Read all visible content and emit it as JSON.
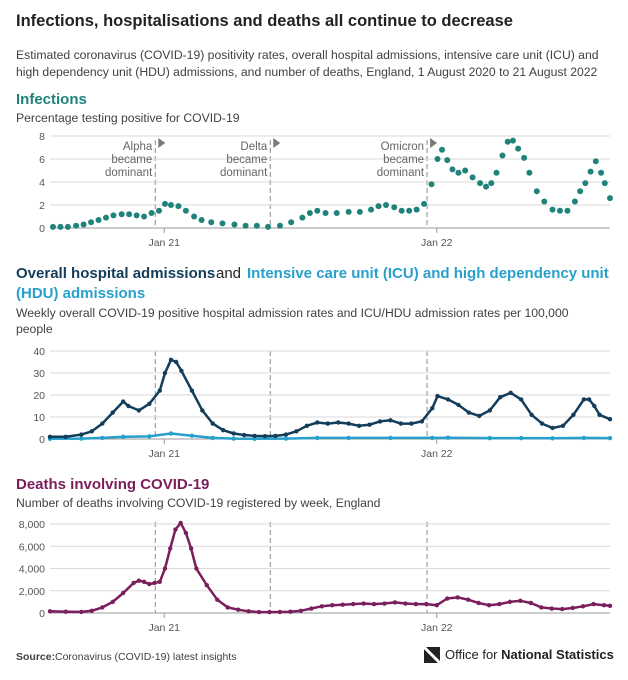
{
  "title": "Infections, hospitalisations and deaths all continue to decrease",
  "subtitle_line1": "Estimated coronavirus (COVID-19) positivity rates, overall hospital admissions, intensive care unit (ICU) and",
  "subtitle_line2": "high dependency unit (HDU) admissions, and number of deaths, England, 1 August 2020 to 21 August 2022",
  "sections": {
    "infections": {
      "title": "Infections",
      "subtitle": "Percentage testing positive for COVID-19"
    },
    "hospital": {
      "title_part1": "Overall hospital admissions",
      "title_joiner": "and",
      "title_part2_line1": "Intensive care unit (ICU) and high dependency unit",
      "title_part2_line2": "(HDU) admissions",
      "subtitle_line1": "Weekly overall COVID-19 positive hospital admission rates and ICU/HDU admission rates per 100,000",
      "subtitle_line2": "people"
    },
    "deaths": {
      "title": "Deaths involving COVID-19",
      "subtitle": "Number of deaths involving COVID-19 registered by week, England"
    }
  },
  "annotations": [
    {
      "line1": "Alpha",
      "line2": "became",
      "line3": "dominant",
      "date": "2020-12-20"
    },
    {
      "line1": "Delta",
      "line2": "became",
      "line3": "dominant",
      "date": "2021-05-23"
    },
    {
      "line1": "Omicron",
      "line2": "became",
      "line3": "dominant",
      "date": "2021-12-19"
    }
  ],
  "source": {
    "label": "Source:",
    "text": "Coronavirus (COVID-19) latest insights"
  },
  "publisher": {
    "prefix": "Office for",
    "bold": "National Statistics"
  },
  "colors": {
    "infections": "#20837b",
    "hospital": "#133d5a",
    "icu": "#27a0cc",
    "deaths": "#7a1e5c",
    "grid": "#d9d9d9"
  },
  "chart_data": [
    {
      "id": "infections",
      "type": "scatter",
      "series_name": "Percentage testing positive for COVID-19",
      "x_range": [
        "2020-08-01",
        "2022-08-21"
      ],
      "x_ticks": [
        {
          "date": "2021-01-01",
          "label": "Jan 21"
        },
        {
          "date": "2022-01-01",
          "label": "Jan 22"
        }
      ],
      "ylim": [
        0,
        8
      ],
      "y_ticks": [
        0,
        2,
        4,
        6,
        8
      ],
      "y_tick_labels": [
        "0",
        "2",
        "4",
        "6",
        "8"
      ],
      "points": [
        [
          "2020-08-05",
          0.1
        ],
        [
          "2020-08-15",
          0.1
        ],
        [
          "2020-08-25",
          0.1
        ],
        [
          "2020-09-05",
          0.2
        ],
        [
          "2020-09-15",
          0.3
        ],
        [
          "2020-09-25",
          0.5
        ],
        [
          "2020-10-05",
          0.7
        ],
        [
          "2020-10-15",
          0.9
        ],
        [
          "2020-10-25",
          1.1
        ],
        [
          "2020-11-05",
          1.2
        ],
        [
          "2020-11-15",
          1.2
        ],
        [
          "2020-11-25",
          1.1
        ],
        [
          "2020-12-05",
          1.0
        ],
        [
          "2020-12-15",
          1.3
        ],
        [
          "2020-12-25",
          1.5
        ],
        [
          "2021-01-02",
          2.1
        ],
        [
          "2021-01-10",
          2.0
        ],
        [
          "2021-01-20",
          1.9
        ],
        [
          "2021-01-30",
          1.5
        ],
        [
          "2021-02-10",
          1.0
        ],
        [
          "2021-02-20",
          0.7
        ],
        [
          "2021-03-05",
          0.5
        ],
        [
          "2021-03-20",
          0.4
        ],
        [
          "2021-04-05",
          0.3
        ],
        [
          "2021-04-20",
          0.2
        ],
        [
          "2021-05-05",
          0.2
        ],
        [
          "2021-05-20",
          0.1
        ],
        [
          "2021-06-05",
          0.2
        ],
        [
          "2021-06-20",
          0.5
        ],
        [
          "2021-07-05",
          0.9
        ],
        [
          "2021-07-15",
          1.3
        ],
        [
          "2021-07-25",
          1.5
        ],
        [
          "2021-08-05",
          1.3
        ],
        [
          "2021-08-20",
          1.3
        ],
        [
          "2021-09-05",
          1.4
        ],
        [
          "2021-09-20",
          1.4
        ],
        [
          "2021-10-05",
          1.6
        ],
        [
          "2021-10-15",
          1.9
        ],
        [
          "2021-10-25",
          2.0
        ],
        [
          "2021-11-05",
          1.8
        ],
        [
          "2021-11-15",
          1.5
        ],
        [
          "2021-11-25",
          1.5
        ],
        [
          "2021-12-05",
          1.6
        ],
        [
          "2021-12-15",
          2.1
        ],
        [
          "2021-12-25",
          3.8
        ],
        [
          "2022-01-02",
          6.0
        ],
        [
          "2022-01-08",
          6.8
        ],
        [
          "2022-01-15",
          5.9
        ],
        [
          "2022-01-22",
          5.1
        ],
        [
          "2022-01-30",
          4.8
        ],
        [
          "2022-02-08",
          5.0
        ],
        [
          "2022-02-18",
          4.4
        ],
        [
          "2022-02-28",
          3.9
        ],
        [
          "2022-03-08",
          3.6
        ],
        [
          "2022-03-15",
          3.9
        ],
        [
          "2022-03-22",
          4.8
        ],
        [
          "2022-03-30",
          6.3
        ],
        [
          "2022-04-06",
          7.5
        ],
        [
          "2022-04-13",
          7.6
        ],
        [
          "2022-04-20",
          6.9
        ],
        [
          "2022-04-28",
          6.1
        ],
        [
          "2022-05-05",
          4.8
        ],
        [
          "2022-05-15",
          3.2
        ],
        [
          "2022-05-25",
          2.3
        ],
        [
          "2022-06-05",
          1.6
        ],
        [
          "2022-06-15",
          1.5
        ],
        [
          "2022-06-25",
          1.5
        ],
        [
          "2022-07-05",
          2.3
        ],
        [
          "2022-07-12",
          3.2
        ],
        [
          "2022-07-19",
          3.9
        ],
        [
          "2022-07-26",
          4.9
        ],
        [
          "2022-08-02",
          5.8
        ],
        [
          "2022-08-09",
          4.8
        ],
        [
          "2022-08-14",
          3.9
        ],
        [
          "2022-08-21",
          2.6
        ]
      ]
    },
    {
      "id": "hospital",
      "type": "line",
      "x_range": [
        "2020-08-01",
        "2022-08-21"
      ],
      "x_ticks": [
        {
          "date": "2021-01-01",
          "label": "Jan 21"
        },
        {
          "date": "2022-01-01",
          "label": "Jan 22"
        }
      ],
      "ylim": [
        0,
        40
      ],
      "y_ticks": [
        0,
        10,
        20,
        30,
        40
      ],
      "y_tick_labels": [
        "0",
        "10",
        "20",
        "30",
        "40"
      ],
      "series": [
        {
          "name": "Overall hospital admissions",
          "points": [
            [
              "2020-08-01",
              1.0
            ],
            [
              "2020-08-22",
              1.0
            ],
            [
              "2020-09-12",
              2.0
            ],
            [
              "2020-09-26",
              3.5
            ],
            [
              "2020-10-10",
              7.0
            ],
            [
              "2020-10-24",
              12.0
            ],
            [
              "2020-11-07",
              17.0
            ],
            [
              "2020-11-14",
              15.0
            ],
            [
              "2020-11-28",
              13.0
            ],
            [
              "2020-12-12",
              16.0
            ],
            [
              "2020-12-26",
              22.0
            ],
            [
              "2021-01-02",
              30.0
            ],
            [
              "2021-01-10",
              36.0
            ],
            [
              "2021-01-17",
              35.0
            ],
            [
              "2021-01-24",
              31.0
            ],
            [
              "2021-02-07",
              22.0
            ],
            [
              "2021-02-21",
              13.0
            ],
            [
              "2021-03-07",
              7.0
            ],
            [
              "2021-03-21",
              4.0
            ],
            [
              "2021-04-04",
              2.5
            ],
            [
              "2021-04-18",
              1.8
            ],
            [
              "2021-05-02",
              1.4
            ],
            [
              "2021-05-16",
              1.3
            ],
            [
              "2021-05-30",
              1.4
            ],
            [
              "2021-06-13",
              2.0
            ],
            [
              "2021-06-27",
              3.5
            ],
            [
              "2021-07-11",
              6.0
            ],
            [
              "2021-07-25",
              7.5
            ],
            [
              "2021-08-08",
              7.0
            ],
            [
              "2021-08-22",
              7.5
            ],
            [
              "2021-09-05",
              7.0
            ],
            [
              "2021-09-19",
              6.0
            ],
            [
              "2021-10-03",
              6.5
            ],
            [
              "2021-10-17",
              8.0
            ],
            [
              "2021-10-31",
              8.5
            ],
            [
              "2021-11-14",
              7.0
            ],
            [
              "2021-11-28",
              7.0
            ],
            [
              "2021-12-12",
              8.0
            ],
            [
              "2021-12-26",
              14.0
            ],
            [
              "2022-01-02",
              19.5
            ],
            [
              "2022-01-16",
              18.0
            ],
            [
              "2022-01-30",
              15.5
            ],
            [
              "2022-02-13",
              12.0
            ],
            [
              "2022-02-27",
              10.5
            ],
            [
              "2022-03-13",
              13.0
            ],
            [
              "2022-03-27",
              19.0
            ],
            [
              "2022-04-10",
              21.0
            ],
            [
              "2022-04-24",
              18.0
            ],
            [
              "2022-05-08",
              11.0
            ],
            [
              "2022-05-22",
              7.0
            ],
            [
              "2022-06-05",
              5.0
            ],
            [
              "2022-06-19",
              6.0
            ],
            [
              "2022-07-03",
              11.0
            ],
            [
              "2022-07-17",
              18.0
            ],
            [
              "2022-07-24",
              18.0
            ],
            [
              "2022-07-31",
              15.0
            ],
            [
              "2022-08-07",
              11.0
            ],
            [
              "2022-08-21",
              9.0
            ]
          ]
        },
        {
          "name": "Intensive care unit (ICU) and high dependency unit (HDU) admissions",
          "points": [
            [
              "2020-08-01",
              0.1
            ],
            [
              "2020-09-12",
              0.2
            ],
            [
              "2020-10-10",
              0.5
            ],
            [
              "2020-11-07",
              1.0
            ],
            [
              "2020-12-12",
              1.2
            ],
            [
              "2021-01-10",
              2.5
            ],
            [
              "2021-02-07",
              1.5
            ],
            [
              "2021-03-07",
              0.5
            ],
            [
              "2021-04-04",
              0.2
            ],
            [
              "2021-05-02",
              0.1
            ],
            [
              "2021-06-13",
              0.2
            ],
            [
              "2021-07-25",
              0.5
            ],
            [
              "2021-09-05",
              0.5
            ],
            [
              "2021-10-31",
              0.5
            ],
            [
              "2021-12-26",
              0.5
            ],
            [
              "2022-01-16",
              0.6
            ],
            [
              "2022-03-13",
              0.4
            ],
            [
              "2022-04-24",
              0.4
            ],
            [
              "2022-06-05",
              0.3
            ],
            [
              "2022-07-17",
              0.5
            ],
            [
              "2022-08-21",
              0.4
            ]
          ]
        }
      ]
    },
    {
      "id": "deaths",
      "type": "line",
      "series_name": "Deaths involving COVID-19",
      "x_range": [
        "2020-08-01",
        "2022-08-21"
      ],
      "x_ticks": [
        {
          "date": "2021-01-01",
          "label": "Jan 21"
        },
        {
          "date": "2022-01-01",
          "label": "Jan 22"
        }
      ],
      "ylim": [
        0,
        8000
      ],
      "y_ticks": [
        0,
        2000,
        4000,
        6000,
        8000
      ],
      "y_tick_labels": [
        "0",
        "2,000",
        "4,000",
        "6,000",
        "8,000"
      ],
      "points": [
        [
          "2020-08-01",
          150
        ],
        [
          "2020-08-22",
          120
        ],
        [
          "2020-09-12",
          100
        ],
        [
          "2020-09-26",
          200
        ],
        [
          "2020-10-10",
          500
        ],
        [
          "2020-10-24",
          1000
        ],
        [
          "2020-11-07",
          1800
        ],
        [
          "2020-11-21",
          2700
        ],
        [
          "2020-11-28",
          2900
        ],
        [
          "2020-12-05",
          2800
        ],
        [
          "2020-12-12",
          2600
        ],
        [
          "2020-12-19",
          2700
        ],
        [
          "2020-12-26",
          2800
        ],
        [
          "2021-01-02",
          4000
        ],
        [
          "2021-01-09",
          5800
        ],
        [
          "2021-01-16",
          7500
        ],
        [
          "2021-01-23",
          8100
        ],
        [
          "2021-01-30",
          7200
        ],
        [
          "2021-02-06",
          5800
        ],
        [
          "2021-02-13",
          4000
        ],
        [
          "2021-02-27",
          2500
        ],
        [
          "2021-03-13",
          1200
        ],
        [
          "2021-03-27",
          500
        ],
        [
          "2021-04-10",
          300
        ],
        [
          "2021-04-24",
          150
        ],
        [
          "2021-05-08",
          80
        ],
        [
          "2021-05-22",
          80
        ],
        [
          "2021-06-05",
          90
        ],
        [
          "2021-06-19",
          120
        ],
        [
          "2021-07-03",
          200
        ],
        [
          "2021-07-17",
          400
        ],
        [
          "2021-07-31",
          600
        ],
        [
          "2021-08-14",
          700
        ],
        [
          "2021-08-28",
          750
        ],
        [
          "2021-09-11",
          800
        ],
        [
          "2021-09-25",
          850
        ],
        [
          "2021-10-09",
          800
        ],
        [
          "2021-10-23",
          850
        ],
        [
          "2021-11-06",
          950
        ],
        [
          "2021-11-20",
          850
        ],
        [
          "2021-12-04",
          800
        ],
        [
          "2021-12-18",
          800
        ],
        [
          "2022-01-01",
          700
        ],
        [
          "2022-01-15",
          1300
        ],
        [
          "2022-01-29",
          1400
        ],
        [
          "2022-02-12",
          1200
        ],
        [
          "2022-02-26",
          900
        ],
        [
          "2022-03-12",
          700
        ],
        [
          "2022-03-26",
          800
        ],
        [
          "2022-04-09",
          1000
        ],
        [
          "2022-04-23",
          1100
        ],
        [
          "2022-05-07",
          900
        ],
        [
          "2022-05-21",
          500
        ],
        [
          "2022-06-04",
          400
        ],
        [
          "2022-06-18",
          350
        ],
        [
          "2022-07-02",
          450
        ],
        [
          "2022-07-16",
          600
        ],
        [
          "2022-07-30",
          800
        ],
        [
          "2022-08-13",
          700
        ],
        [
          "2022-08-21",
          650
        ]
      ]
    }
  ]
}
